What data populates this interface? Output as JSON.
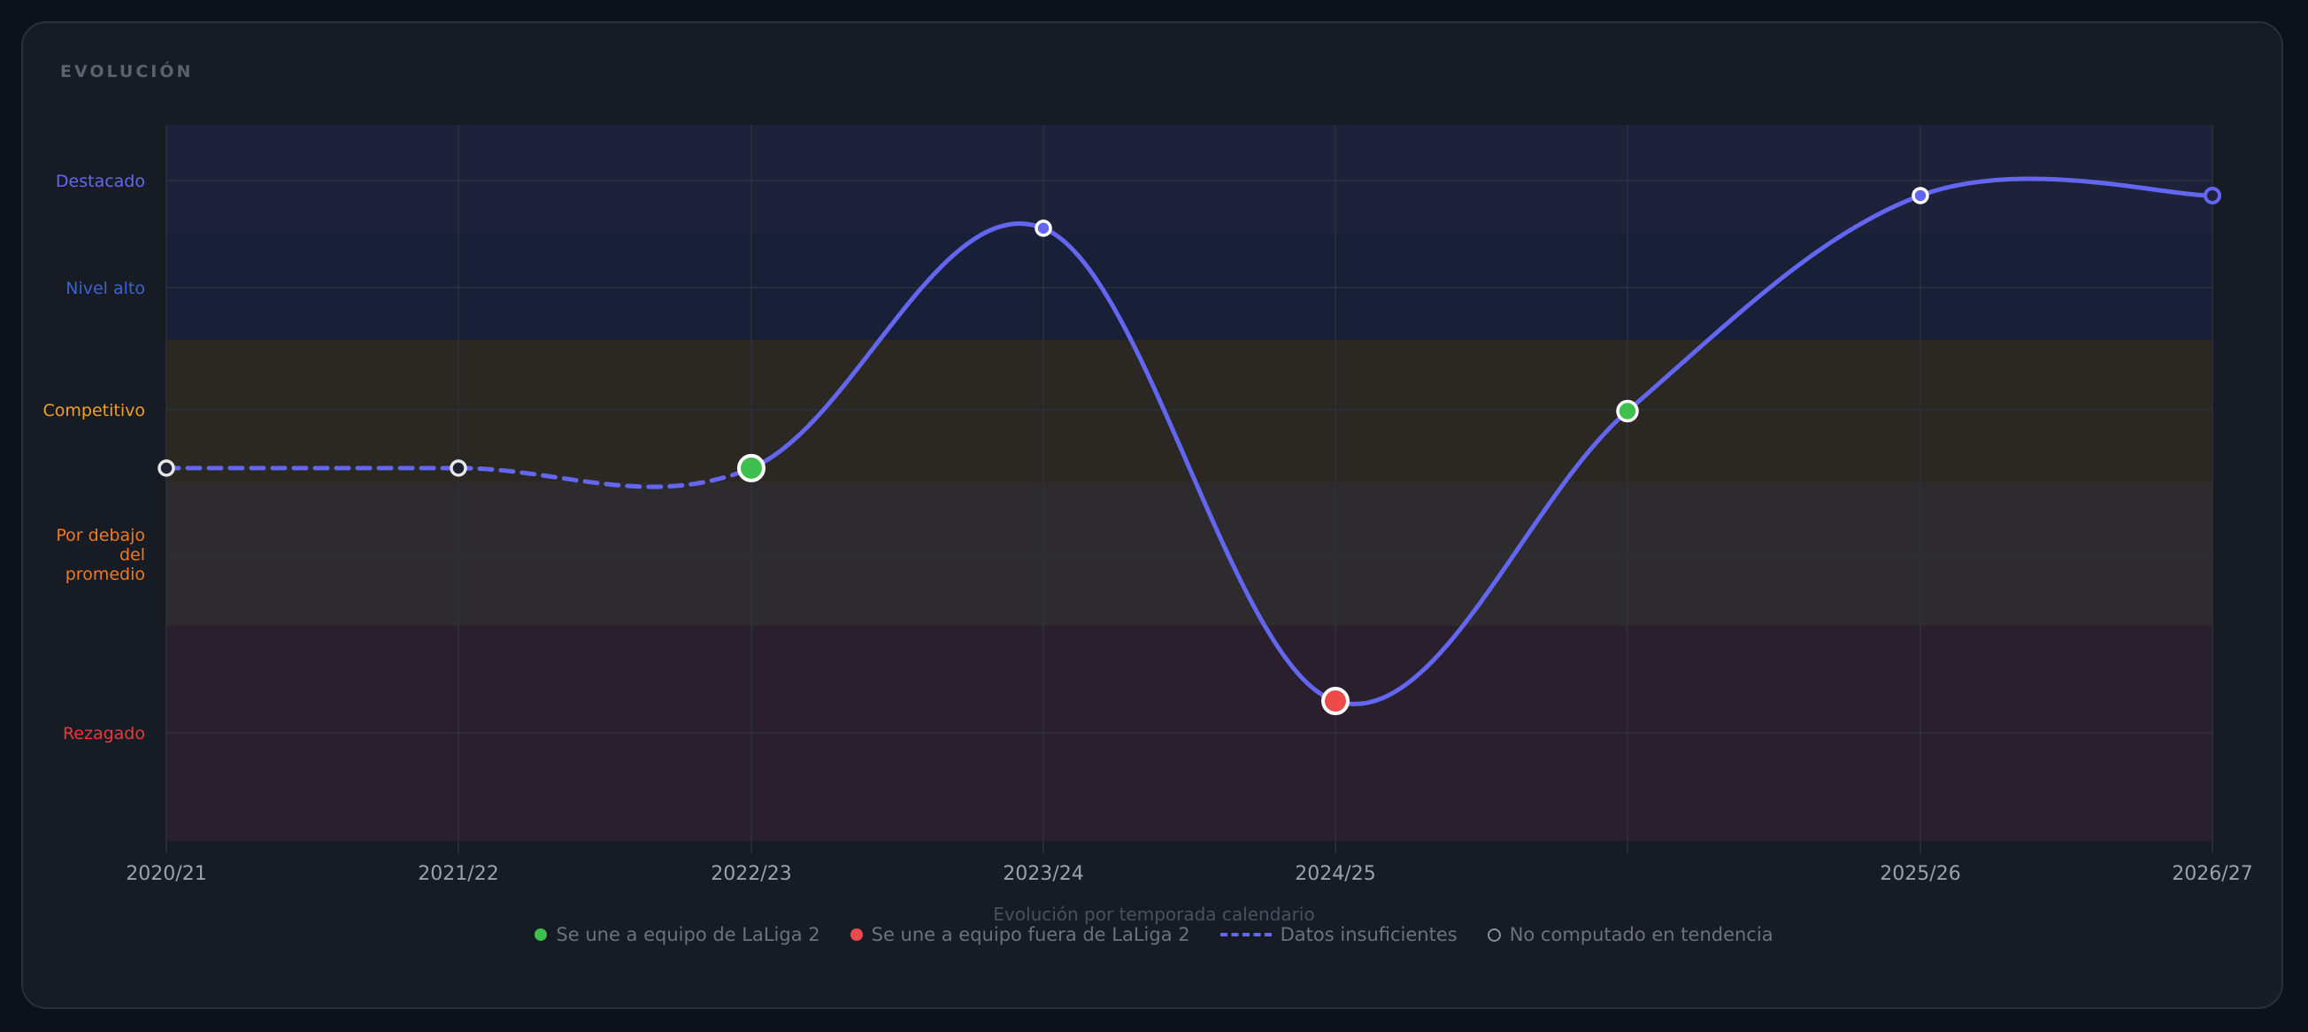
{
  "card": {
    "title": "EVOLUCIÓN"
  },
  "chart_data": {
    "type": "line",
    "xlabel": "Evolución por temporada calendario",
    "x_ticks": [
      "2020/21",
      "2021/22",
      "2022/23",
      "2023/24",
      "2024/25",
      "",
      "2025/26",
      "2026/27"
    ],
    "bands": [
      {
        "name": "Destacado",
        "label_lines": [
          "Destacado"
        ],
        "label_color": "#6366f1",
        "fill": "#1d2139"
      },
      {
        "name": "Nivel alto",
        "label_lines": [
          "Nivel alto"
        ],
        "label_color": "#3b63d6",
        "fill": "#172036"
      },
      {
        "name": "Competitivo",
        "label_lines": [
          "Competitivo"
        ],
        "label_color": "#f0a020",
        "fill": "#2b2722"
      },
      {
        "name": "Por debajo del promedio",
        "label_lines": [
          "Por debajo",
          "del",
          "promedio"
        ],
        "label_color": "#f07a1c",
        "fill": "#2e2b2e"
      },
      {
        "name": "Rezagado",
        "label_lines": [
          "Rezagado"
        ],
        "label_color": "#e23c3c",
        "fill": "#2a1f2d"
      }
    ],
    "series": [
      {
        "line_color": "#6366f1",
        "points": [
          {
            "x": "2020/21",
            "level": 2.9,
            "marker": "ring",
            "dashed_to_next": true
          },
          {
            "x": "2021/22",
            "level": 2.9,
            "marker": "ring",
            "dashed_to_next": true
          },
          {
            "x": "2022/23",
            "level": 2.9,
            "marker": "green"
          },
          {
            "x": "2023/24",
            "level": 0.95,
            "marker": "ring-blue"
          },
          {
            "x": "2024/25",
            "level": 4.35,
            "marker": "red"
          },
          {
            "x": "",
            "level": 2.5,
            "marker": "green-small"
          },
          {
            "x": "2025/26",
            "level": 0.65,
            "marker": "ring-blue"
          },
          {
            "x": "2026/27",
            "level": 0.65,
            "marker": "ring-blue-hollow"
          }
        ]
      }
    ],
    "grid": true
  },
  "legend": {
    "items": [
      {
        "label": "Se une a equipo de LaLiga 2",
        "swatch": "green"
      },
      {
        "label": "Se une a equipo fuera de LaLiga 2",
        "swatch": "red"
      },
      {
        "label": "Datos insuficientes",
        "swatch": "dash"
      },
      {
        "label": "No computado en tendencia",
        "swatch": "ring"
      }
    ]
  },
  "colors": {
    "line": "#6366f1",
    "green": "#3fbf4f",
    "red": "#ef4a4a",
    "grid": "#2c313c",
    "tick": "#9aa0ad",
    "subtitle": "#4a5060"
  }
}
